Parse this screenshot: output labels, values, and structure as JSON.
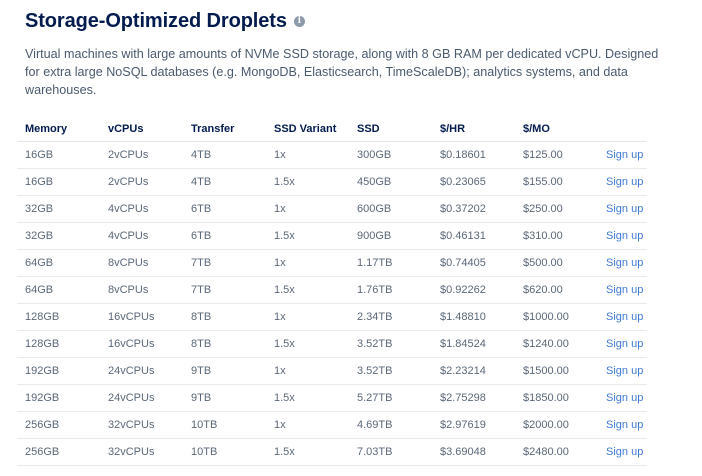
{
  "header": {
    "title": "Storage-Optimized Droplets",
    "info_icon": "info-icon",
    "description": "Virtual machines with large amounts of NVMe SSD storage, along with 8 GB RAM per dedicated vCPU. Designed for extra large NoSQL databases (e.g. MongoDB, Elasticsearch, TimeScaleDB); analytics systems, and data warehouses."
  },
  "colors": {
    "heading": "#031b4e",
    "text": "#5b6878",
    "link": "#3f7ad6",
    "divider": "#e6e9ed"
  },
  "table": {
    "columns": [
      "Memory",
      "vCPUs",
      "Transfer",
      "SSD Variant",
      "SSD",
      "$/HR",
      "$/MO",
      ""
    ],
    "rows": [
      [
        "16GB",
        "2vCPUs",
        "4TB",
        "1x",
        "300GB",
        "$0.18601",
        "$125.00",
        "Sign up"
      ],
      [
        "16GB",
        "2vCPUs",
        "4TB",
        "1.5x",
        "450GB",
        "$0.23065",
        "$155.00",
        "Sign up"
      ],
      [
        "32GB",
        "4vCPUs",
        "6TB",
        "1x",
        "600GB",
        "$0.37202",
        "$250.00",
        "Sign up"
      ],
      [
        "32GB",
        "4vCPUs",
        "6TB",
        "1.5x",
        "900GB",
        "$0.46131",
        "$310.00",
        "Sign up"
      ],
      [
        "64GB",
        "8vCPUs",
        "7TB",
        "1x",
        "1.17TB",
        "$0.74405",
        "$500.00",
        "Sign up"
      ],
      [
        "64GB",
        "8vCPUs",
        "7TB",
        "1.5x",
        "1.76TB",
        "$0.92262",
        "$620.00",
        "Sign up"
      ],
      [
        "128GB",
        "16vCPUs",
        "8TB",
        "1x",
        "2.34TB",
        "$1.48810",
        "$1000.00",
        "Sign up"
      ],
      [
        "128GB",
        "16vCPUs",
        "8TB",
        "1.5x",
        "3.52TB",
        "$1.84524",
        "$1240.00",
        "Sign up"
      ],
      [
        "192GB",
        "24vCPUs",
        "9TB",
        "1x",
        "3.52TB",
        "$2.23214",
        "$1500.00",
        "Sign up"
      ],
      [
        "192GB",
        "24vCPUs",
        "9TB",
        "1.5x",
        "5.27TB",
        "$2.75298",
        "$1850.00",
        "Sign up"
      ],
      [
        "256GB",
        "32vCPUs",
        "10TB",
        "1x",
        "4.69TB",
        "$2.97619",
        "$2000.00",
        "Sign up"
      ],
      [
        "256GB",
        "32vCPUs",
        "10TB",
        "1.5x",
        "7.03TB",
        "$3.69048",
        "$2480.00",
        "Sign up"
      ]
    ]
  }
}
